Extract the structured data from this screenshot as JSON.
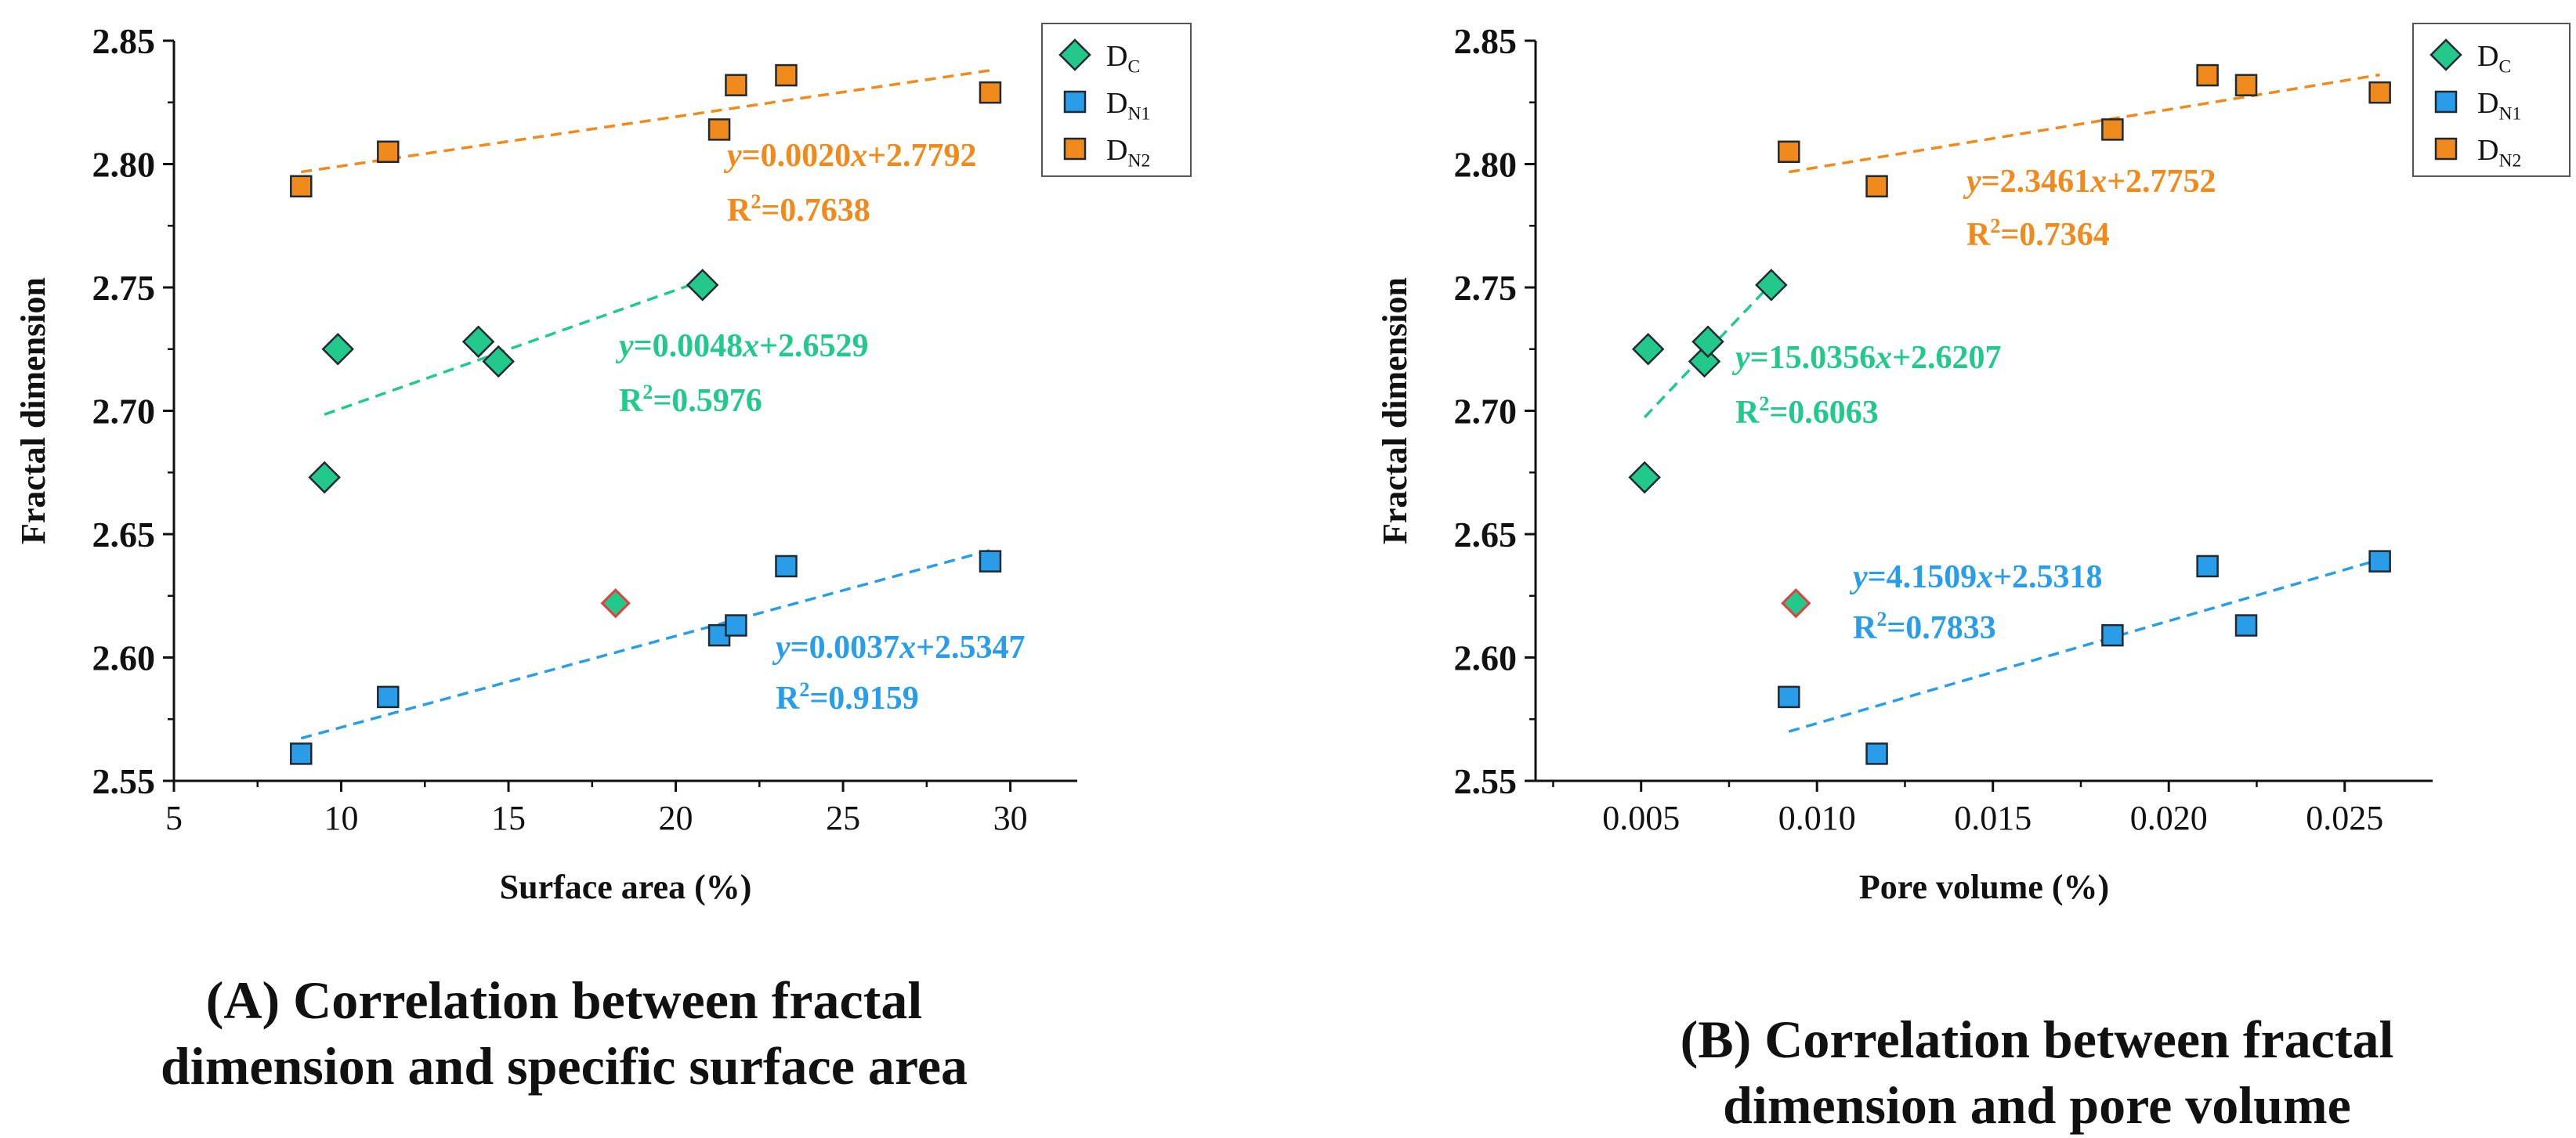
{
  "charts": [
    {
      "type": "scatter",
      "caption_lines": [
        "(A) Correlation between fractal",
        "dimension and specific surface area"
      ],
      "xlabel": "Surface area (%)",
      "ylabel": "Fractal dimension",
      "xlim": [
        5,
        32
      ],
      "ylim": [
        2.55,
        2.85
      ],
      "xticks": [
        "5",
        "10",
        "15",
        "20",
        "25",
        "30"
      ],
      "yticks": [
        "2.55",
        "2.60",
        "2.65",
        "2.70",
        "2.75",
        "2.80",
        "2.85"
      ],
      "legend": [
        "D_C",
        "D_N1",
        "D_N2"
      ],
      "series": [
        {
          "name": "D_C",
          "color": "#22c98a",
          "marker": "diamond",
          "x": [
            9.5,
            9.9,
            14.1,
            14.7,
            20.8
          ],
          "y": [
            2.673,
            2.725,
            2.728,
            2.72,
            2.751
          ],
          "fit": {
            "x0": 9.5,
            "x1": 20.8,
            "equation": "y=0.0048x+2.6529",
            "r2": "R2=0.5976"
          }
        },
        {
          "name": "D_N1",
          "color": "#2a9de8",
          "marker": "square",
          "x": [
            8.8,
            11.4,
            21.3,
            21.8,
            23.3,
            29.4
          ],
          "y": [
            2.561,
            2.584,
            2.609,
            2.613,
            2.637,
            2.639
          ],
          "fit": {
            "x0": 8.8,
            "x1": 29.4,
            "equation": "y=0.0037x+2.5347",
            "r2": "R2=0.9159"
          }
        },
        {
          "name": "D_N2",
          "color": "#f08a1c",
          "marker": "square",
          "x": [
            8.8,
            11.4,
            21.3,
            21.8,
            23.3,
            29.4
          ],
          "y": [
            2.791,
            2.805,
            2.814,
            2.832,
            2.836,
            2.829
          ],
          "fit": {
            "x0": 8.8,
            "x1": 29.4,
            "equation": "y=0.0020x+2.7792",
            "r2": "R2=0.7638"
          }
        }
      ],
      "outlier": {
        "x": 18.2,
        "y": 2.622
      }
    },
    {
      "type": "scatter",
      "caption_lines": [
        "(B) Correlation between fractal",
        "dimension and pore volume"
      ],
      "xlabel": "Pore volume (%)",
      "ylabel": "Fractal dimension",
      "xlim": [
        0.002,
        0.0275
      ],
      "ylim": [
        2.55,
        2.85
      ],
      "xticks": [
        "0.005",
        "0.010",
        "0.015",
        "0.020",
        "0.025"
      ],
      "yticks": [
        "2.55",
        "2.60",
        "2.65",
        "2.70",
        "2.75",
        "2.80",
        "2.85"
      ],
      "legend": [
        "D_C",
        "D_N1",
        "D_N2"
      ],
      "series": [
        {
          "name": "D_C",
          "color": "#22c98a",
          "marker": "diamond",
          "x": [
            0.0051,
            0.0052,
            0.0068,
            0.0069,
            0.0087
          ],
          "y": [
            2.673,
            2.725,
            2.72,
            2.728,
            2.751
          ],
          "fit": {
            "x0": 0.0051,
            "x1": 0.0087,
            "equation": "y=15.0356x+2.6207",
            "r2": "R2=0.6063"
          }
        },
        {
          "name": "D_N1",
          "color": "#2a9de8",
          "marker": "square",
          "x": [
            0.0092,
            0.0117,
            0.0184,
            0.0211,
            0.0222,
            0.026
          ],
          "y": [
            2.584,
            2.561,
            2.609,
            2.637,
            2.613,
            2.639
          ],
          "fit": {
            "x0": 0.0092,
            "x1": 0.026,
            "equation": "y=4.1509x+2.5318",
            "r2": "R2=0.7833"
          }
        },
        {
          "name": "D_N2",
          "color": "#f08a1c",
          "marker": "square",
          "x": [
            0.0092,
            0.0117,
            0.0184,
            0.0211,
            0.0222,
            0.026
          ],
          "y": [
            2.805,
            2.791,
            2.814,
            2.836,
            2.832,
            2.829
          ],
          "fit": {
            "x0": 0.0092,
            "x1": 0.026,
            "equation": "y=2.3461x+2.7752",
            "r2": "R2=0.7364"
          }
        }
      ],
      "outlier": {
        "x": 0.0094,
        "y": 2.622
      }
    }
  ]
}
